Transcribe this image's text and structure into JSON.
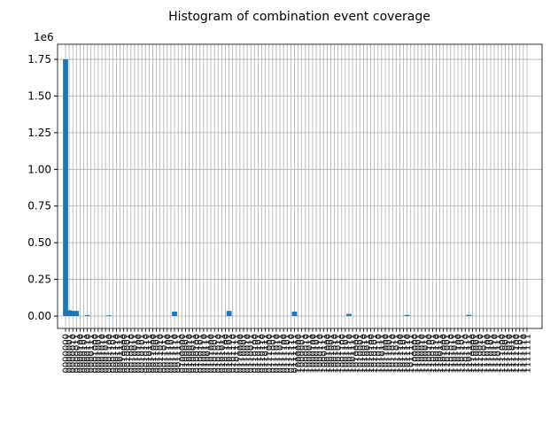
{
  "chart_data": {
    "type": "bar",
    "title": "Histogram of combination event coverage",
    "offset_label": "1e6",
    "categories": [
      "0000000",
      "0000001",
      "0000010",
      "0000011",
      "0000100",
      "0000101",
      "0000110",
      "0000111",
      "0001000",
      "0001001",
      "0001010",
      "0001011",
      "0001100",
      "0001101",
      "0001110",
      "0001111",
      "0010000",
      "0010001",
      "0010010",
      "0010011",
      "0010100",
      "0010101",
      "0010110",
      "0010111",
      "0011000",
      "0011001",
      "0011010",
      "0011011",
      "0011100",
      "0011101",
      "0011110",
      "0011111",
      "0100000",
      "0100001",
      "0100010",
      "0100011",
      "0100100",
      "0100101",
      "0100110",
      "0100111",
      "0101000",
      "0101001",
      "0101010",
      "0101011",
      "0101100",
      "0101101",
      "0101110",
      "0101111",
      "0110000",
      "0110001",
      "0110010",
      "0110011",
      "0110100",
      "0110101",
      "0110110",
      "0110111",
      "0111000",
      "0111001",
      "0111010",
      "0111011",
      "0111100",
      "0111101",
      "0111110",
      "0111111",
      "1000000",
      "1000001",
      "1000010",
      "1000011",
      "1000100",
      "1000101",
      "1000110",
      "1000111",
      "1001000",
      "1001001",
      "1001010",
      "1001011",
      "1001100",
      "1001101",
      "1001110",
      "1001111",
      "1010000",
      "1010001",
      "1010010",
      "1010011",
      "1010100",
      "1010101",
      "1010110",
      "1010111",
      "1011000",
      "1011001",
      "1011010",
      "1011011",
      "1011100",
      "1011101",
      "1011110",
      "1011111",
      "1100000",
      "1100001",
      "1100010",
      "1100011",
      "1100100",
      "1100101",
      "1100110",
      "1100111",
      "1101000",
      "1101001",
      "1101010",
      "1101011",
      "1101100",
      "1101101",
      "1101110",
      "1101111",
      "1110000",
      "1110001",
      "1110010",
      "1110011",
      "1110100",
      "1110101",
      "1110110",
      "1110111",
      "1111000",
      "1111001",
      "1111010",
      "1111011",
      "1111100",
      "1111101",
      "1111110",
      "1111111"
    ],
    "values": [
      1.75,
      0.04,
      0.035,
      0.035,
      0,
      0,
      0.006,
      0,
      0,
      0,
      0,
      0,
      0.005,
      0,
      0,
      0,
      0,
      0,
      0,
      0,
      0,
      0,
      0,
      0,
      0,
      0,
      0,
      0,
      0,
      0,
      0.03,
      0,
      0,
      0,
      0,
      0,
      0,
      0,
      0,
      0,
      0,
      0,
      0,
      0,
      0,
      0.035,
      0,
      0,
      0,
      0,
      0,
      0,
      0,
      0,
      0,
      0,
      0,
      0,
      0,
      0,
      0,
      0,
      0,
      0.03,
      0,
      0,
      0,
      0,
      0,
      0,
      0,
      0,
      0,
      0,
      0,
      0,
      0,
      0,
      0.015,
      0,
      0,
      0,
      0,
      0,
      0,
      0,
      0,
      0,
      0,
      0,
      0,
      0,
      0,
      0,
      0.008,
      0,
      0,
      0,
      0,
      0,
      0,
      0,
      0,
      0,
      0,
      0,
      0,
      0,
      0,
      0,
      0,
      0.008,
      0,
      0,
      0,
      0,
      0,
      0,
      0,
      0,
      0,
      0,
      0,
      0,
      0,
      0,
      0,
      0
    ],
    "color": "#1f77b4",
    "ylim": [
      -0.0845,
      1.853
    ],
    "yticks": [
      {
        "value": 0,
        "label": "0.00"
      },
      0.25,
      {
        "value": 0.5,
        "label": "0.50"
      },
      0.75,
      {
        "value": 1,
        "label": "1.00"
      },
      1.25,
      {
        "value": 1.5,
        "label": "1.50"
      },
      1.75
    ],
    "grid": true
  }
}
